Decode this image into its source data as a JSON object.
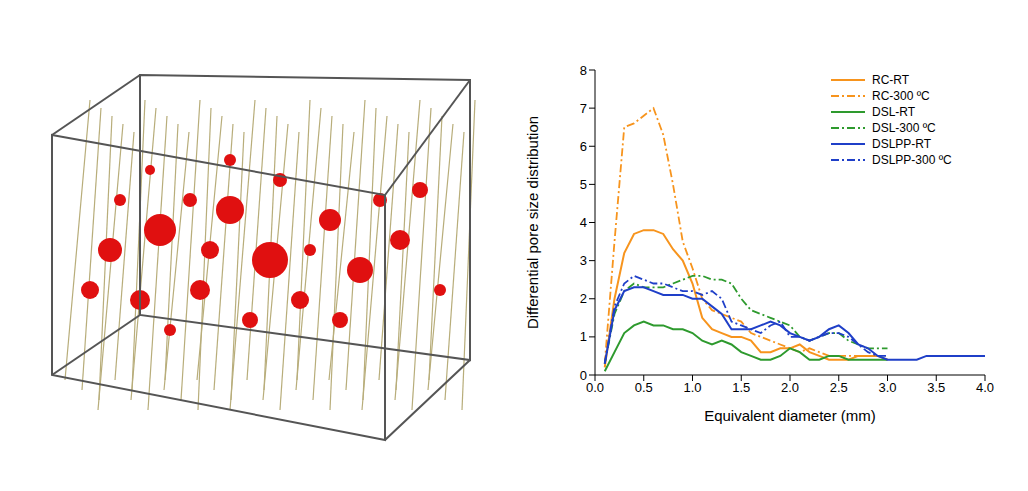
{
  "chart_data": {
    "type": "line",
    "x_label": "Equivalent diameter (mm)",
    "y_label": "Differential pore size distribution",
    "x": [
      0.1,
      0.2,
      0.3,
      0.4,
      0.5,
      0.6,
      0.7,
      0.8,
      0.9,
      1.0,
      1.1,
      1.2,
      1.3,
      1.4,
      1.5,
      1.6,
      1.7,
      1.8,
      1.9,
      2.0,
      2.1,
      2.2,
      2.3,
      2.4,
      2.5,
      2.6,
      2.7,
      2.8,
      2.9,
      3.0,
      3.1,
      3.2,
      3.3,
      3.4,
      3.5,
      3.6,
      3.7,
      3.8,
      3.9,
      4.0
    ],
    "xlim": [
      0,
      4
    ],
    "xticks": [
      {
        "value": 0,
        "label": "0.0"
      },
      {
        "value": 0.5,
        "label": "0.5"
      },
      {
        "value": 1,
        "label": "1.0"
      },
      {
        "value": 1.5,
        "label": "1.5"
      },
      {
        "value": 2,
        "label": "2.0"
      },
      {
        "value": 2.5,
        "label": "2.5"
      },
      {
        "value": 3,
        "label": "3.0"
      },
      {
        "value": 3.5,
        "label": "3.5"
      },
      {
        "value": 4,
        "label": "4.0"
      }
    ],
    "ylim": [
      0,
      8
    ],
    "yticks": [
      0,
      1,
      2,
      3,
      4,
      5,
      6,
      7,
      8
    ],
    "grid": false,
    "legend": "upper right",
    "series": [
      {
        "name": "RC-RT",
        "color": "#f7941d",
        "line_style": "solid",
        "values": [
          0.2,
          2.0,
          3.2,
          3.7,
          3.8,
          3.8,
          3.7,
          3.3,
          3.0,
          2.4,
          1.5,
          1.2,
          1.1,
          1.0,
          1.0,
          0.9,
          0.6,
          0.6,
          0.7,
          0.7,
          0.8,
          0.6,
          0.5,
          0.4,
          0.4,
          0.4,
          0.5,
          0.5,
          0.5,
          0.4,
          null,
          null,
          null,
          null,
          null,
          null,
          null,
          null,
          null,
          null
        ]
      },
      {
        "name": "RC-300 ºC",
        "color": "#f7941d",
        "line_style": "dashdot",
        "values": [
          0.3,
          3.5,
          6.5,
          6.6,
          6.8,
          7.0,
          6.3,
          5.0,
          3.5,
          2.8,
          2.0,
          1.7,
          1.6,
          1.5,
          1.4,
          1.1,
          1.0,
          0.9,
          0.8,
          0.7,
          0.6,
          0.7,
          0.6,
          0.5,
          0.5,
          0.5,
          0.5,
          0.5,
          null,
          null,
          null,
          null,
          null,
          null,
          null,
          null,
          null,
          null,
          null,
          null
        ]
      },
      {
        "name": "DSL-RT",
        "color": "#2e9a2e",
        "line_style": "solid",
        "values": [
          0.1,
          0.6,
          1.1,
          1.3,
          1.4,
          1.3,
          1.3,
          1.2,
          1.2,
          1.1,
          0.9,
          0.8,
          0.9,
          0.8,
          0.6,
          0.5,
          0.4,
          0.4,
          0.5,
          0.7,
          0.6,
          0.4,
          0.4,
          0.5,
          0.5,
          0.4,
          0.4,
          0.4,
          0.4,
          0.4,
          null,
          null,
          null,
          null,
          null,
          null,
          null,
          null,
          null,
          null
        ]
      },
      {
        "name": "DSL-300 ºC",
        "color": "#2e9a2e",
        "line_style": "dashdot",
        "values": [
          0.3,
          1.6,
          2.2,
          2.4,
          2.3,
          2.3,
          2.3,
          2.4,
          2.5,
          2.6,
          2.6,
          2.5,
          2.5,
          2.4,
          2.0,
          1.7,
          1.6,
          1.5,
          1.4,
          1.3,
          1.0,
          0.9,
          1.0,
          1.1,
          1.1,
          0.9,
          0.8,
          0.7,
          0.7,
          0.7,
          null,
          null,
          null,
          null,
          null,
          null,
          null,
          null,
          null,
          null
        ]
      },
      {
        "name": "DSLPP-RT",
        "color": "#1f3fc8",
        "line_style": "solid",
        "values": [
          0.3,
          1.7,
          2.2,
          2.3,
          2.3,
          2.2,
          2.1,
          2.1,
          2.1,
          2.0,
          2.0,
          1.8,
          1.6,
          1.2,
          1.2,
          1.2,
          1.3,
          1.4,
          1.3,
          1.1,
          1.0,
          0.9,
          1.0,
          1.2,
          1.3,
          1.1,
          0.8,
          0.7,
          0.5,
          0.4,
          0.4,
          0.4,
          0.4,
          0.5,
          0.5,
          0.5,
          0.5,
          0.5,
          0.5,
          0.5
        ]
      },
      {
        "name": "DSLPP-300 ºC",
        "color": "#1f3fc8",
        "line_style": "dashdot",
        "values": [
          0.3,
          1.8,
          2.4,
          2.6,
          2.5,
          2.4,
          2.4,
          2.3,
          2.2,
          2.2,
          2.1,
          2.2,
          2.0,
          1.4,
          1.3,
          1.2,
          1.1,
          1.3,
          1.4,
          1.0,
          1.0,
          0.9,
          1.0,
          1.1,
          1.1,
          1.0,
          0.8,
          0.6,
          0.5,
          0.5,
          null,
          null,
          null,
          null,
          null,
          null,
          null,
          null,
          null,
          null
        ]
      }
    ]
  }
}
